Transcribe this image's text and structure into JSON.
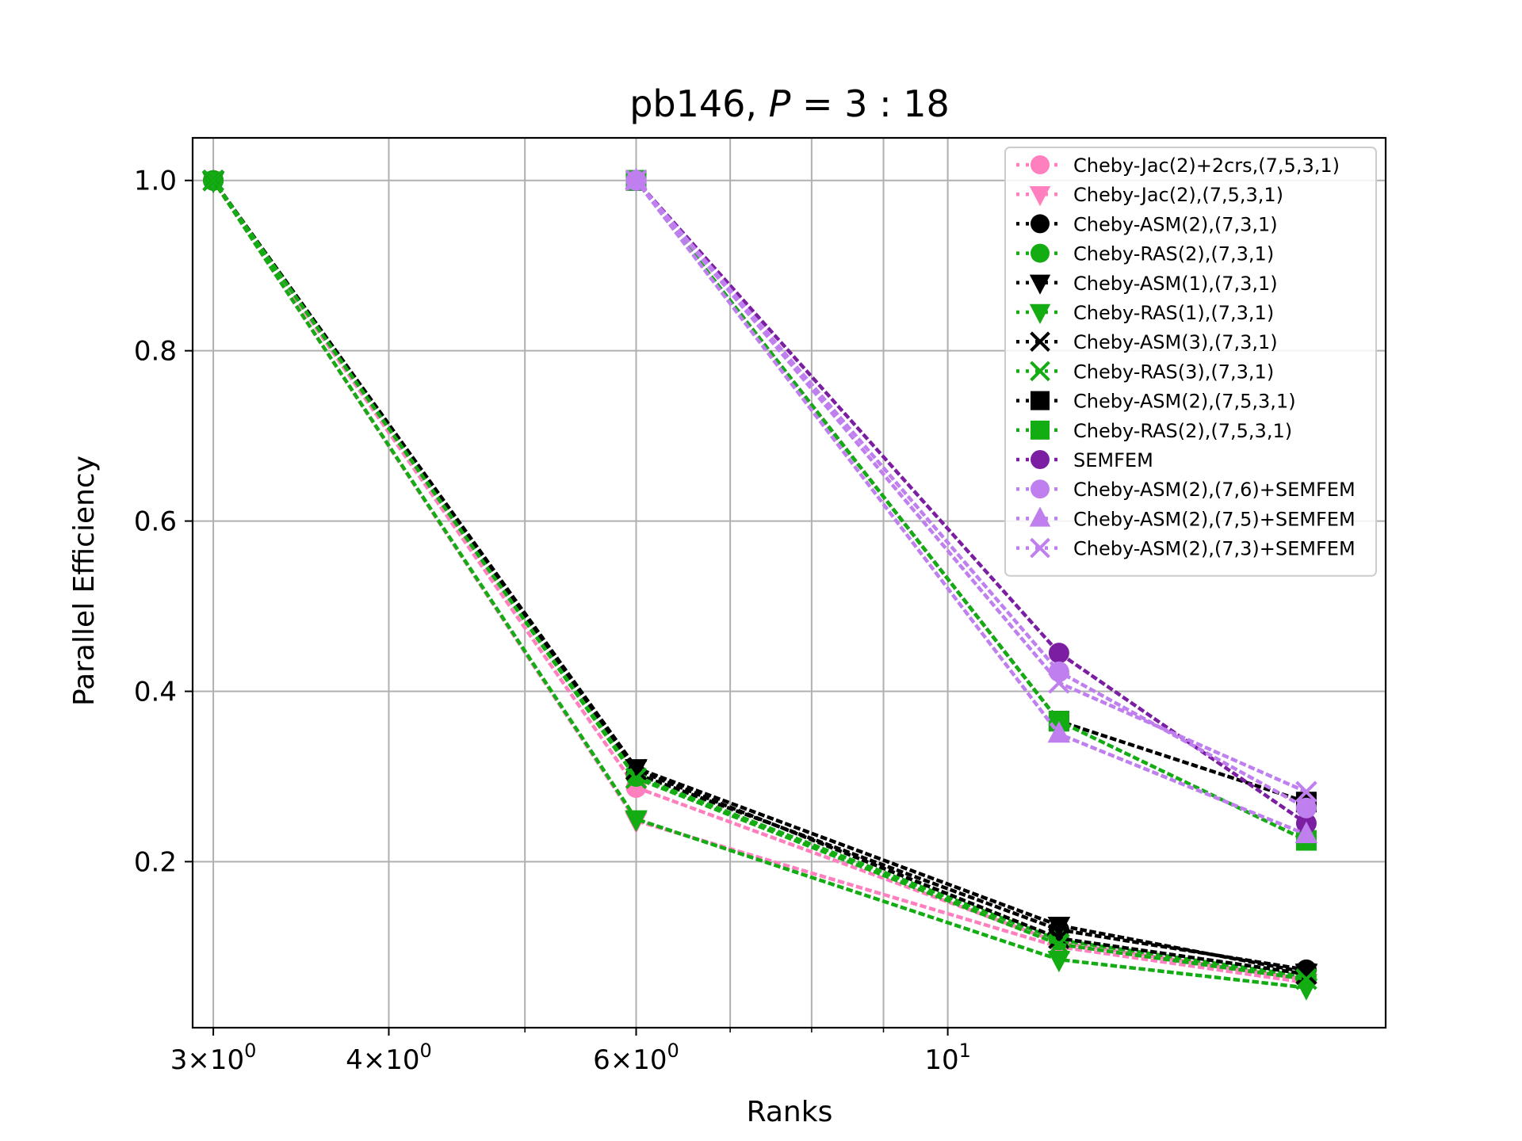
{
  "chart_data": {
    "type": "line",
    "title": "pb146, P = 3 : 18",
    "title_parts": {
      "prefix": "pb146, ",
      "var": "P",
      "rest": " = 3 : 18"
    },
    "xlabel": "Ranks",
    "ylabel": "Parallel Efficiency",
    "xscale": "log",
    "xlim": [
      2.9,
      20.5
    ],
    "ylim": [
      0.005,
      1.05
    ],
    "grid": true,
    "legend_position": "top-right",
    "x_major_ticks": [
      {
        "value": 3,
        "base": "3",
        "sep": "×",
        "pow_base": "10",
        "exp": "0"
      },
      {
        "value": 4,
        "base": "4",
        "sep": "×",
        "pow_base": "10",
        "exp": "0"
      },
      {
        "value": 6,
        "base": "6",
        "sep": "×",
        "pow_base": "10",
        "exp": "0"
      },
      {
        "value": 10,
        "base": "",
        "sep": "",
        "pow_base": "10",
        "exp": "1"
      }
    ],
    "x_minor_grid": [
      5,
      7,
      8,
      9
    ],
    "y_ticks": [
      {
        "value": 0.2,
        "label": "0.2"
      },
      {
        "value": 0.4,
        "label": "0.4"
      },
      {
        "value": 0.6,
        "label": "0.6"
      },
      {
        "value": 0.8,
        "label": "0.8"
      },
      {
        "value": 1.0,
        "label": "1.0"
      }
    ],
    "series": [
      {
        "name": "Cheby-Jac(2)+2crs,(7,5,3,1)",
        "color": "#ff7fbf",
        "marker": "circle",
        "x": [
          3,
          6,
          12,
          18
        ],
        "y": [
          1.0,
          0.287,
          0.105,
          0.062
        ]
      },
      {
        "name": "Cheby-Jac(2),(7,5,3,1)",
        "color": "#ff7fbf",
        "marker": "triangle-down",
        "x": [
          3,
          6,
          12,
          18
        ],
        "y": [
          1.0,
          0.248,
          0.1,
          0.058
        ]
      },
      {
        "name": "Cheby-ASM(2),(7,3,1)",
        "color": "#000000",
        "marker": "circle",
        "x": [
          3,
          6,
          12,
          18
        ],
        "y": [
          1.0,
          0.303,
          0.12,
          0.073
        ]
      },
      {
        "name": "Cheby-RAS(2),(7,3,1)",
        "color": "#13ac13",
        "marker": "circle",
        "x": [
          3,
          6,
          12,
          18
        ],
        "y": [
          1.0,
          0.3,
          0.108,
          0.065
        ]
      },
      {
        "name": "Cheby-ASM(1),(7,3,1)",
        "color": "#000000",
        "marker": "triangle-down",
        "x": [
          3,
          6,
          12,
          18
        ],
        "y": [
          1.0,
          0.31,
          0.125,
          0.07
        ]
      },
      {
        "name": "Cheby-RAS(1),(7,3,1)",
        "color": "#13ac13",
        "marker": "triangle-down",
        "x": [
          3,
          6,
          12,
          18
        ],
        "y": [
          1.0,
          0.25,
          0.085,
          0.052
        ]
      },
      {
        "name": "Cheby-ASM(3),(7,3,1)",
        "color": "#000000",
        "marker": "x",
        "x": [
          3,
          6,
          12,
          18
        ],
        "y": [
          1.0,
          0.308,
          0.11,
          0.068
        ]
      },
      {
        "name": "Cheby-RAS(3),(7,3,1)",
        "color": "#13ac13",
        "marker": "x",
        "x": [
          3,
          6,
          12,
          18
        ],
        "y": [
          1.0,
          0.298,
          0.103,
          0.062
        ]
      },
      {
        "name": "Cheby-ASM(2),(7,5,3,1)",
        "color": "#000000",
        "marker": "square",
        "x": [
          6,
          12,
          18
        ],
        "y": [
          1.0,
          0.365,
          0.27
        ]
      },
      {
        "name": "Cheby-RAS(2),(7,5,3,1)",
        "color": "#13ac13",
        "marker": "square",
        "x": [
          6,
          12,
          18
        ],
        "y": [
          1.0,
          0.365,
          0.225
        ]
      },
      {
        "name": "SEMFEM",
        "color": "#7b1ea2",
        "marker": "circle",
        "x": [
          6,
          12,
          18
        ],
        "y": [
          1.0,
          0.445,
          0.245
        ]
      },
      {
        "name": "Cheby-ASM(2),(7,6)+SEMFEM",
        "color": "#bf7fef",
        "marker": "circle",
        "x": [
          6,
          12,
          18
        ],
        "y": [
          1.0,
          0.423,
          0.263
        ]
      },
      {
        "name": "Cheby-ASM(2),(7,5)+SEMFEM",
        "color": "#bf7fef",
        "marker": "triangle-up",
        "x": [
          6,
          12,
          18
        ],
        "y": [
          1.0,
          0.35,
          0.232
        ]
      },
      {
        "name": "Cheby-ASM(2),(7,3)+SEMFEM",
        "color": "#bf7fef",
        "marker": "x",
        "x": [
          6,
          12,
          18
        ],
        "y": [
          1.0,
          0.41,
          0.282
        ]
      }
    ]
  }
}
